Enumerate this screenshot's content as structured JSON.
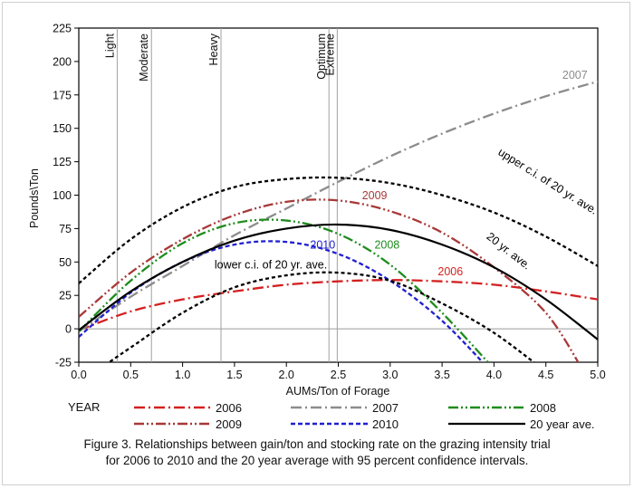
{
  "chart_data": {
    "type": "line",
    "xlabel": "AUMs/Ton of Forage",
    "ylabel": "Pounds\\Ton",
    "xlim": [
      0.0,
      5.0
    ],
    "ylim": [
      -25,
      225
    ],
    "xticks": [
      0.0,
      0.5,
      1.0,
      1.5,
      2.0,
      2.5,
      3.0,
      3.5,
      4.0,
      4.5,
      5.0
    ],
    "xtick_labels": [
      "0.0",
      "0.5",
      "1.0",
      "1.5",
      "2.0",
      "2.5",
      "3.0",
      "3.5",
      "4.0",
      "4.5",
      "5.0"
    ],
    "yticks": [
      -25,
      0,
      25,
      50,
      75,
      100,
      125,
      150,
      175,
      200,
      225
    ],
    "grid": false,
    "zero_line": true,
    "reference_lines": [
      {
        "label": "Light",
        "x": 0.37
      },
      {
        "label": "Moderate",
        "x": 0.7
      },
      {
        "label": "Heavy",
        "x": 1.37
      },
      {
        "label": "Optimum",
        "x": 2.41
      },
      {
        "label": "Extreme",
        "x": 2.49
      }
    ],
    "series": [
      {
        "name": "2006",
        "color": "#d42020",
        "style": "dashdot",
        "x": [
          0,
          0.5,
          1,
          1.5,
          2,
          2.5,
          3,
          3.5,
          4,
          4.5,
          5
        ],
        "values": [
          -1,
          13,
          22,
          28,
          33,
          35.5,
          36.5,
          35.5,
          33,
          28,
          22
        ]
      },
      {
        "name": "2007",
        "color": "#8c8c8c",
        "style": "dashdot",
        "x": [
          0,
          0.5,
          1,
          1.5,
          2,
          2.5,
          3,
          3.5,
          4,
          4.5,
          5
        ],
        "values": [
          -2,
          24,
          47,
          70,
          90,
          110,
          129,
          146,
          161,
          174,
          185
        ]
      },
      {
        "name": "2008",
        "color": "#1e8c1e",
        "style": "dashdotdot",
        "x": [
          0,
          0.5,
          1,
          1.5,
          2,
          2.5,
          3,
          3.5,
          4
        ],
        "values": [
          -2,
          36,
          64,
          79,
          81,
          71,
          48,
          12,
          -30
        ]
      },
      {
        "name": "2009",
        "color": "#a83838",
        "style": "dashdotdot",
        "x": [
          0,
          0.5,
          1,
          1.5,
          2,
          2.5,
          3,
          3.5,
          4,
          4.5,
          4.85
        ],
        "values": [
          9,
          42,
          67,
          85,
          95,
          96,
          88,
          72,
          46,
          12,
          -30
        ]
      },
      {
        "name": "2010",
        "color": "#2020d0",
        "style": "dash",
        "x": [
          0,
          0.5,
          1,
          1.5,
          2,
          2.5,
          3,
          3.5,
          3.95
        ],
        "values": [
          -6,
          27,
          50,
          63,
          65,
          56,
          36,
          6,
          -30
        ]
      },
      {
        "name": "20 year ave.",
        "color": "#000000",
        "style": "solid",
        "x": [
          0,
          0.5,
          1,
          1.5,
          2,
          2.5,
          3,
          3.5,
          4,
          4.5,
          5
        ],
        "values": [
          -1,
          28,
          50,
          66,
          75,
          78,
          74,
          63,
          46,
          22,
          -8
        ]
      },
      {
        "name": "upper c.i. of 20 yr. ave.",
        "color": "#000000",
        "style": "dot",
        "x": [
          0,
          0.5,
          1,
          1.5,
          2,
          2.5,
          3,
          3.5,
          4,
          4.5,
          5
        ],
        "values": [
          34,
          67,
          91,
          106,
          112,
          113,
          109,
          100,
          87,
          69,
          47
        ]
      },
      {
        "name": "lower c.i. of 20 yr. ave.",
        "color": "#000000",
        "style": "dot",
        "x": [
          0.2,
          0.5,
          1,
          1.5,
          2,
          2.5,
          3,
          3.5,
          4,
          4.5
        ],
        "values": [
          -30,
          -14,
          12,
          31,
          40,
          42,
          36,
          19,
          -3,
          -32
        ]
      }
    ],
    "annotations": [
      {
        "text": "2007",
        "x": 4.78,
        "y": 187,
        "color": "#8c8c8c"
      },
      {
        "text": "2009",
        "x": 2.85,
        "y": 97,
        "color": "#a83838"
      },
      {
        "text": "2010",
        "x": 2.35,
        "y": 60,
        "color": "#2020d0"
      },
      {
        "text": "2008",
        "x": 2.97,
        "y": 60,
        "color": "#1e8c1e"
      },
      {
        "text": "2006",
        "x": 3.58,
        "y": 40,
        "color": "#d42020"
      },
      {
        "text": "20 yr. ave.",
        "x": 4.12,
        "y": 56,
        "color": "#000000",
        "rotate": 38
      },
      {
        "text": "upper c.i. of 20 yr. ave.",
        "x": 4.5,
        "y": 108,
        "color": "#000000",
        "rotate": 32
      },
      {
        "text": "lower c.i. of 20 yr. ave.",
        "x": 1.85,
        "y": 45,
        "color": "#000000"
      }
    ],
    "legend": {
      "title": "YEAR",
      "placement": "below",
      "entries": [
        "2006",
        "2007",
        "2008",
        "2009",
        "2010",
        "20 year ave."
      ]
    }
  },
  "caption": {
    "line1": "Figure 3. Relationships between gain/ton and stocking rate on the grazing intensity trial",
    "line2": "for 2006 to 2010 and the 20 year average with 95 percent confidence intervals."
  }
}
